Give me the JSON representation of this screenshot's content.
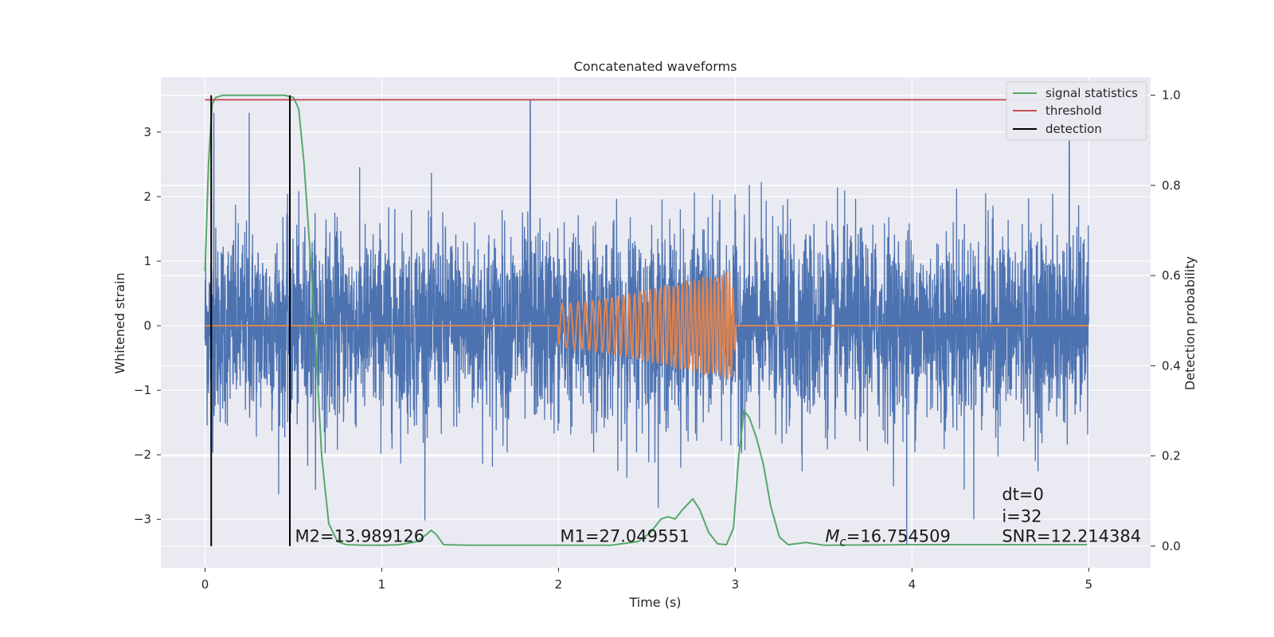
{
  "chart_data": {
    "type": "line",
    "title": "Concatenated waveforms",
    "xlabel": "Time (s)",
    "ylabel": "Whitened strain",
    "y2label": "Detection probability",
    "xlim": [
      -0.25,
      5.35
    ],
    "ylim": [
      -3.75,
      3.85
    ],
    "y2lim": [
      -0.048,
      1.04
    ],
    "xticks": [
      0,
      1,
      2,
      3,
      4,
      5
    ],
    "xtick_labels": [
      "0",
      "1",
      "2",
      "3",
      "4",
      "5"
    ],
    "yticks": [
      -3,
      -2,
      -1,
      0,
      1,
      2,
      3
    ],
    "ytick_labels": [
      "−3",
      "−2",
      "−1",
      "0",
      "1",
      "2",
      "3"
    ],
    "y2ticks": [
      0.0,
      0.2,
      0.4,
      0.6,
      0.8,
      1.0
    ],
    "y2tick_labels": [
      "0.0",
      "0.2",
      "0.4",
      "0.6",
      "0.8",
      "1.0"
    ],
    "grid": true,
    "legend_position": "top-right",
    "series": [
      {
        "name": "",
        "axis": "left",
        "color": "#4c72b0",
        "kind": "noise",
        "x_range": [
          0,
          5
        ],
        "std": 0.75,
        "extremes": [
          [
            0.05,
            3.3
          ],
          [
            1.84,
            3.5
          ],
          [
            4.89,
            3.3
          ],
          [
            3.97,
            -3.4
          ],
          [
            0.25,
            3.3
          ],
          [
            4.35,
            -3.0
          ]
        ]
      },
      {
        "name": "",
        "axis": "left",
        "color": "#dd8452",
        "kind": "chirp",
        "x": [
          0,
          2,
          2.2,
          2.4,
          2.6,
          2.8,
          2.98,
          3.0,
          5
        ],
        "amplitude": [
          0,
          0.33,
          0.4,
          0.5,
          0.62,
          0.75,
          0.85,
          0.3,
          0
        ]
      },
      {
        "name": "signal statistics",
        "axis": "right",
        "color": "#55a868",
        "x": [
          0.0,
          0.02,
          0.04,
          0.06,
          0.1,
          0.2,
          0.3,
          0.45,
          0.5,
          0.53,
          0.56,
          0.6,
          0.63,
          0.66,
          0.7,
          0.75,
          0.8,
          0.9,
          1.0,
          1.1,
          1.2,
          1.25,
          1.28,
          1.31,
          1.35,
          1.5,
          1.8,
          2.0,
          2.3,
          2.45,
          2.52,
          2.58,
          2.62,
          2.66,
          2.7,
          2.76,
          2.8,
          2.85,
          2.9,
          2.95,
          2.99,
          3.02,
          3.05,
          3.08,
          3.12,
          3.16,
          3.2,
          3.25,
          3.3,
          3.4,
          3.5,
          4.0,
          4.5,
          4.99
        ],
        "y": [
          0.61,
          0.85,
          0.98,
          0.995,
          1.0,
          1.0,
          1.0,
          1.0,
          0.995,
          0.97,
          0.85,
          0.62,
          0.42,
          0.2,
          0.05,
          0.01,
          0.003,
          0.002,
          0.002,
          0.003,
          0.01,
          0.025,
          0.035,
          0.025,
          0.003,
          0.002,
          0.002,
          0.002,
          0.002,
          0.01,
          0.03,
          0.06,
          0.065,
          0.06,
          0.08,
          0.105,
          0.08,
          0.03,
          0.005,
          0.003,
          0.04,
          0.2,
          0.3,
          0.285,
          0.24,
          0.18,
          0.09,
          0.02,
          0.003,
          0.008,
          0.002,
          0.003,
          0.003,
          0.003
        ]
      },
      {
        "name": "threshold",
        "axis": "right",
        "color": "#c44e52",
        "x": [
          0,
          5
        ],
        "y": [
          0.99,
          0.99
        ]
      },
      {
        "name": "detection",
        "axis": "right",
        "color": "#000000",
        "kind": "vlines",
        "x": [
          0.035,
          0.48
        ]
      }
    ],
    "annotations": [
      {
        "text": "M2=13.989126",
        "x": 0.5,
        "y": -3.35
      },
      {
        "text": "M1=27.049551",
        "x": 2.0,
        "y": -3.35
      },
      {
        "text_pre": "M",
        "text_sub": "c",
        "text_post": "=16.754509",
        "x": 3.5,
        "y": -3.35
      },
      {
        "text": "dt=0",
        "x": 4.5,
        "y": -2.7
      },
      {
        "text": "i=32",
        "x": 4.5,
        "y": -3.04
      },
      {
        "text": "SNR=12.214384",
        "x": 4.5,
        "y": -3.35
      }
    ]
  }
}
